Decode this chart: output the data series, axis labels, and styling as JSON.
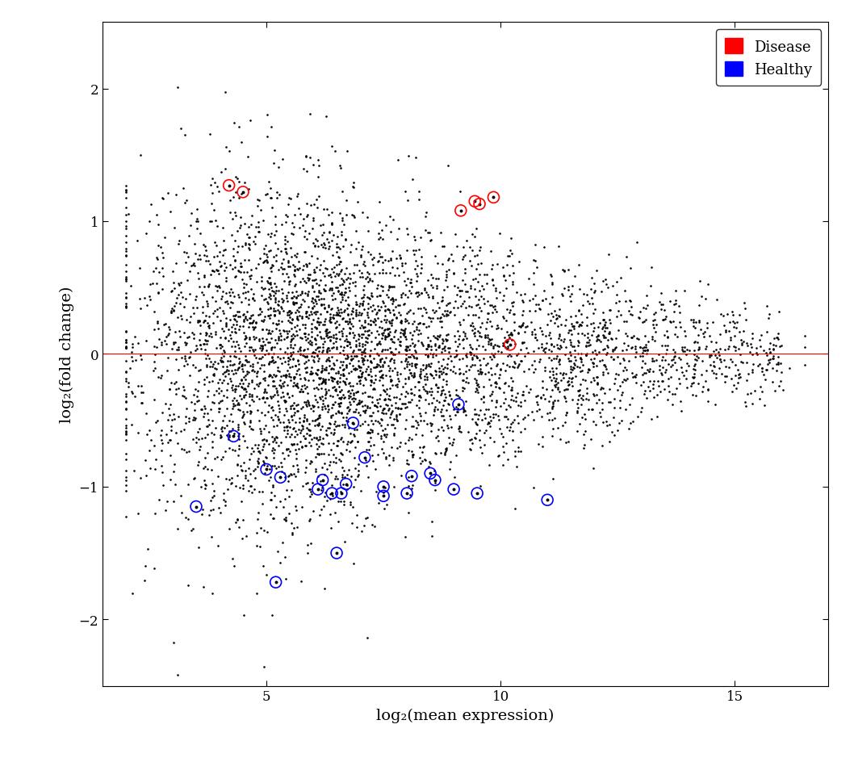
{
  "title": "",
  "xlabel": "log₂(mean expression)",
  "ylabel": "log₂(fold change)",
  "xlim": [
    1.5,
    17
  ],
  "ylim": [
    -2.5,
    2.5
  ],
  "xticks": [
    5,
    10,
    15
  ],
  "yticks": [
    -2,
    -1,
    0,
    1,
    2
  ],
  "hline_y": 0,
  "hline_color": "#ff0000",
  "background_color": "#ffffff",
  "dot_color": "black",
  "dot_size": 3.5,
  "seed": 42,
  "n_background": 5000,
  "disease_points": [
    [
      4.2,
      1.27
    ],
    [
      4.5,
      1.22
    ],
    [
      9.15,
      1.08
    ],
    [
      9.45,
      1.15
    ],
    [
      9.55,
      1.13
    ],
    [
      9.85,
      1.18
    ],
    [
      10.2,
      0.07
    ]
  ],
  "healthy_points": [
    [
      3.5,
      -1.15
    ],
    [
      4.3,
      -0.62
    ],
    [
      5.0,
      -0.87
    ],
    [
      5.3,
      -0.93
    ],
    [
      6.1,
      -1.02
    ],
    [
      6.2,
      -0.95
    ],
    [
      6.4,
      -1.05
    ],
    [
      6.5,
      -1.5
    ],
    [
      5.2,
      -1.72
    ],
    [
      6.6,
      -1.05
    ],
    [
      6.7,
      -0.98
    ],
    [
      6.85,
      -0.52
    ],
    [
      7.1,
      -0.78
    ],
    [
      7.5,
      -1.0
    ],
    [
      7.5,
      -1.07
    ],
    [
      8.0,
      -1.05
    ],
    [
      8.1,
      -0.92
    ],
    [
      8.5,
      -0.9
    ],
    [
      8.6,
      -0.95
    ],
    [
      9.0,
      -1.02
    ],
    [
      9.1,
      -0.38
    ],
    [
      9.5,
      -1.05
    ],
    [
      11.0,
      -1.1
    ]
  ],
  "disease_color": "red",
  "healthy_color": "blue",
  "legend_fontsize": 13,
  "axis_fontsize": 14,
  "tick_fontsize": 12,
  "figsize": [
    10.58,
    9.45
  ],
  "dpi": 100
}
